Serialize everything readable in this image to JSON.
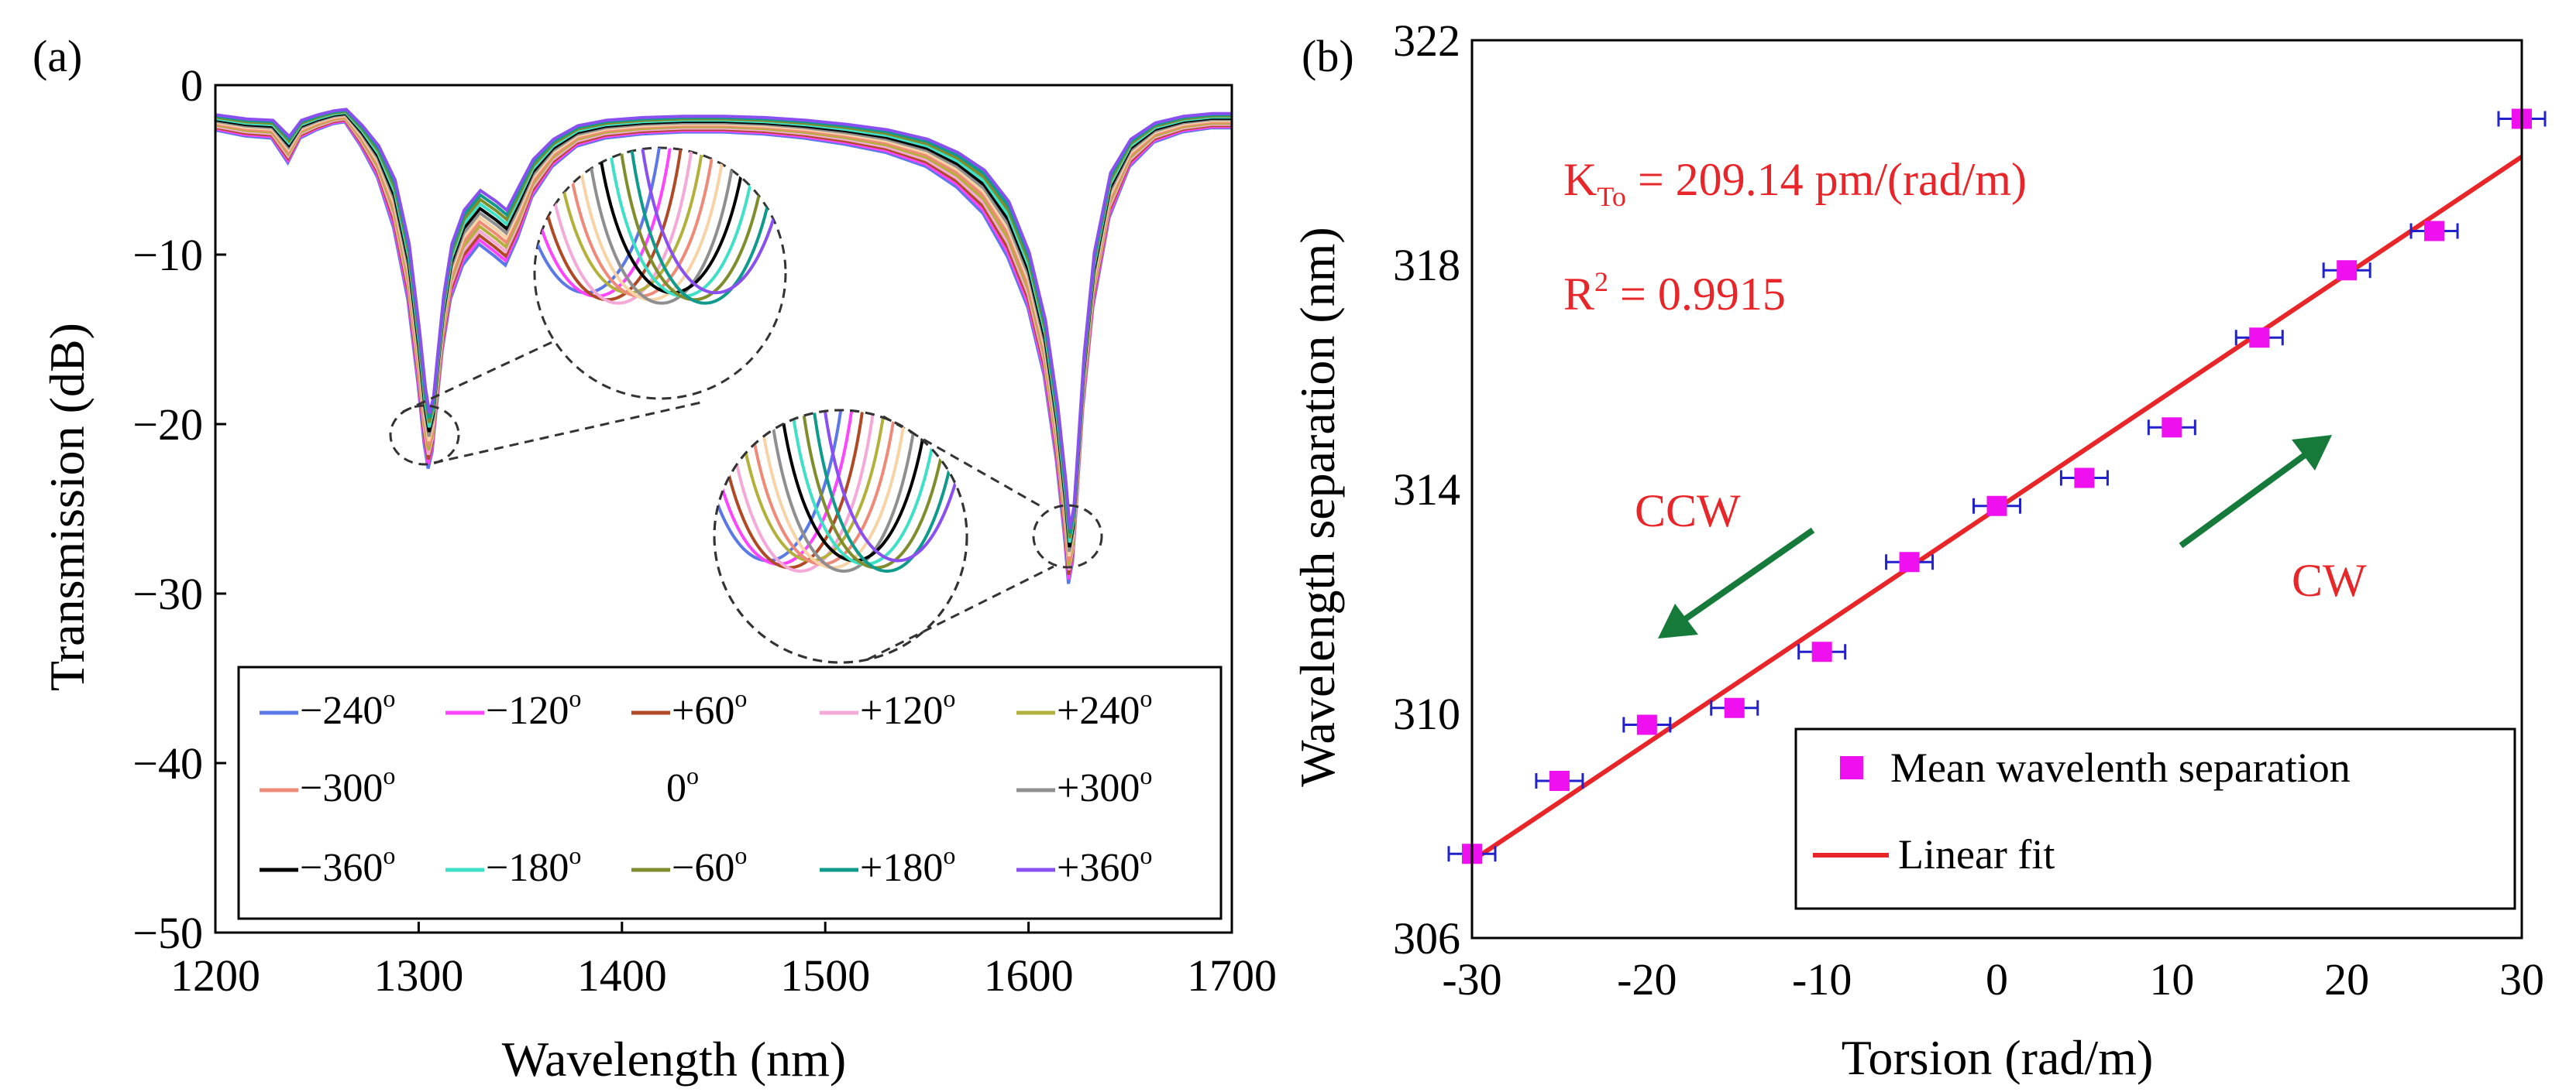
{
  "colors": {
    "angles": [
      "#5b78e8",
      "#ff44ff",
      "#b04a26",
      "#f5a9d8",
      "#b3b13c",
      "#f08a78",
      "#f7d3a6",
      "#8f8f8f",
      "#000000",
      "#3fe0c8",
      "#7f8d2c",
      "#109a8c",
      "#8a4ff0"
    ],
    "marker": "#ee10ee",
    "errorbar": "#2222cc",
    "fit": "#e8262a",
    "arrow": "#167a3a",
    "annotation": "#e8262a"
  },
  "chart_data": [
    {
      "panel": "(a)",
      "type": "line",
      "xlabel": "Wavelength (nm)",
      "ylabel": "Transmission (dB)",
      "xlim": [
        1200,
        1700
      ],
      "ylim": [
        -50,
        0
      ],
      "xticks": [
        "1200",
        "1300",
        "1400",
        "1500",
        "1600",
        "1700"
      ],
      "yticks": [
        "0",
        "-10",
        "-20",
        "-30",
        "-40",
        "-50"
      ],
      "series_shape": {
        "x": [
          1200,
          1215,
          1228,
          1236,
          1242,
          1250,
          1258,
          1264,
          1272,
          1280,
          1288,
          1295,
          1300,
          1303,
          1305,
          1307,
          1309,
          1312,
          1316,
          1322,
          1330,
          1338,
          1343,
          1349,
          1356,
          1366,
          1378,
          1392,
          1410,
          1430,
          1450,
          1470,
          1490,
          1510,
          1530,
          1550,
          1565,
          1578,
          1590,
          1600,
          1608,
          1614,
          1618,
          1620,
          1622,
          1624,
          1627,
          1632,
          1640,
          1650,
          1662,
          1676,
          1690,
          1700
        ],
        "y": [
          -2.2,
          -2.5,
          -2.6,
          -3.8,
          -2.6,
          -2.2,
          -1.9,
          -1.8,
          -3.0,
          -4.5,
          -7.0,
          -11.0,
          -16.0,
          -19.5,
          -21.0,
          -20.0,
          -17.5,
          -14.0,
          -11.0,
          -9.0,
          -7.8,
          -8.5,
          -9.0,
          -7.5,
          -5.5,
          -4.0,
          -3.0,
          -2.6,
          -2.4,
          -2.3,
          -2.3,
          -2.4,
          -2.6,
          -2.9,
          -3.3,
          -4.0,
          -5.0,
          -6.3,
          -8.5,
          -11.5,
          -15.5,
          -20.5,
          -25.0,
          -27.8,
          -26.5,
          -23.0,
          -17.5,
          -11.5,
          -6.5,
          -4.0,
          -2.8,
          -2.3,
          -2.1,
          -2.1
        ]
      },
      "legend": [
        [
          "−240",
          "−120",
          "+60",
          "+120",
          "+240"
        ],
        [
          "−300",
          "",
          "0",
          "",
          "+300"
        ],
        [
          "−360",
          "−180",
          "−60",
          "+180",
          "+360"
        ]
      ],
      "legend_suffix": "o"
    },
    {
      "panel": "(b)",
      "type": "scatter",
      "xlabel": "Torsion (rad/m)",
      "ylabel": "Wavelength separation (nm)",
      "xlim": [
        -30,
        30
      ],
      "ylim": [
        306,
        322
      ],
      "xticks": [
        "-30",
        "-20",
        "-10",
        "0",
        "10",
        "20",
        "30"
      ],
      "yticks": [
        "306",
        "310",
        "314",
        "318",
        "322"
      ],
      "x": [
        -30,
        -25,
        -20,
        -15,
        -10,
        -5,
        0,
        5,
        10,
        15,
        20,
        25,
        30
      ],
      "y": [
        307.5,
        308.8,
        309.8,
        310.1,
        311.1,
        312.7,
        313.7,
        314.2,
        315.1,
        316.7,
        317.9,
        318.6,
        320.6
      ],
      "fit": {
        "slope": 0.20914,
        "intercept": 313.65
      },
      "legend": [
        "Mean wavelenth separation",
        "Linear fit"
      ],
      "annotations": {
        "k_main": "K",
        "k_sub": "To",
        "k_value": " = 209.14 pm/(rad/m)",
        "r_main": "R",
        "r_sup": "2",
        "r_value": " = 0.9915",
        "ccw": "CCW",
        "cw": "CW"
      }
    }
  ]
}
